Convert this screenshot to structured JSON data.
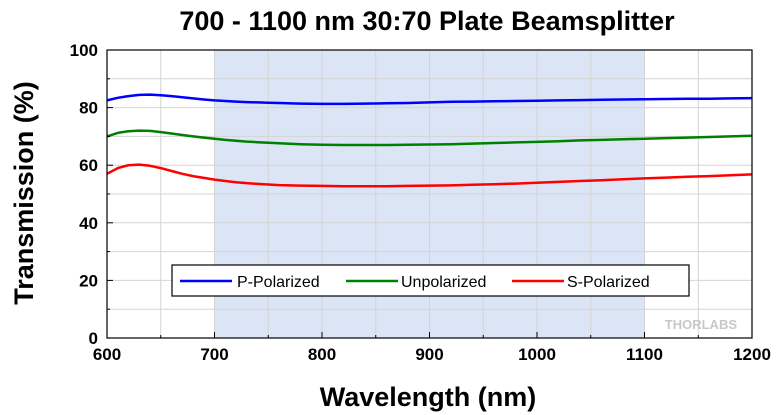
{
  "chart_data": {
    "type": "line",
    "title": "700 - 1100 nm 30:70 Plate Beamsplitter",
    "xlabel": "Wavelength (nm)",
    "ylabel": "Transmission (%)",
    "xlim": [
      600,
      1200
    ],
    "ylim": [
      0,
      100
    ],
    "xticks": [
      600,
      700,
      800,
      900,
      1000,
      1100,
      1200
    ],
    "yticks": [
      0,
      20,
      40,
      60,
      80,
      100
    ],
    "grid": true,
    "shaded_region": [
      700,
      1100
    ],
    "legend_position": "bottom-center",
    "x": [
      600,
      610,
      620,
      630,
      640,
      650,
      660,
      670,
      680,
      690,
      700,
      710,
      720,
      730,
      740,
      750,
      760,
      780,
      800,
      820,
      840,
      860,
      880,
      900,
      920,
      940,
      960,
      980,
      1000,
      1020,
      1040,
      1060,
      1080,
      1100,
      1120,
      1140,
      1160,
      1180,
      1200
    ],
    "series": [
      {
        "name": "P-Polarized",
        "color": "#0000ff",
        "values": [
          82.5,
          83.4,
          84.0,
          84.4,
          84.5,
          84.3,
          84.0,
          83.6,
          83.2,
          82.8,
          82.5,
          82.3,
          82.1,
          81.9,
          81.8,
          81.7,
          81.6,
          81.4,
          81.3,
          81.3,
          81.4,
          81.5,
          81.6,
          81.8,
          82.0,
          82.1,
          82.2,
          82.3,
          82.4,
          82.5,
          82.6,
          82.7,
          82.8,
          82.9,
          83.0,
          83.1,
          83.1,
          83.2,
          83.3
        ]
      },
      {
        "name": "Unpolarized",
        "color": "#008000",
        "values": [
          70.0,
          71.2,
          71.8,
          72.0,
          71.9,
          71.5,
          71.0,
          70.5,
          70.0,
          69.6,
          69.2,
          68.8,
          68.5,
          68.2,
          68.0,
          67.8,
          67.6,
          67.3,
          67.1,
          67.0,
          67.0,
          67.0,
          67.1,
          67.2,
          67.3,
          67.5,
          67.7,
          67.9,
          68.1,
          68.3,
          68.6,
          68.8,
          69.0,
          69.2,
          69.4,
          69.6,
          69.8,
          70.0,
          70.2
        ]
      },
      {
        "name": "S-Polarized",
        "color": "#ff0000",
        "values": [
          57.0,
          59.0,
          60.0,
          60.2,
          59.8,
          59.0,
          58.0,
          57.0,
          56.2,
          55.6,
          55.0,
          54.5,
          54.1,
          53.8,
          53.5,
          53.3,
          53.1,
          52.9,
          52.8,
          52.7,
          52.7,
          52.7,
          52.8,
          52.9,
          53.0,
          53.2,
          53.4,
          53.6,
          53.9,
          54.2,
          54.5,
          54.8,
          55.1,
          55.4,
          55.7,
          56.0,
          56.2,
          56.5,
          56.8
        ]
      }
    ]
  },
  "logo": {
    "text": "THORLABS"
  }
}
